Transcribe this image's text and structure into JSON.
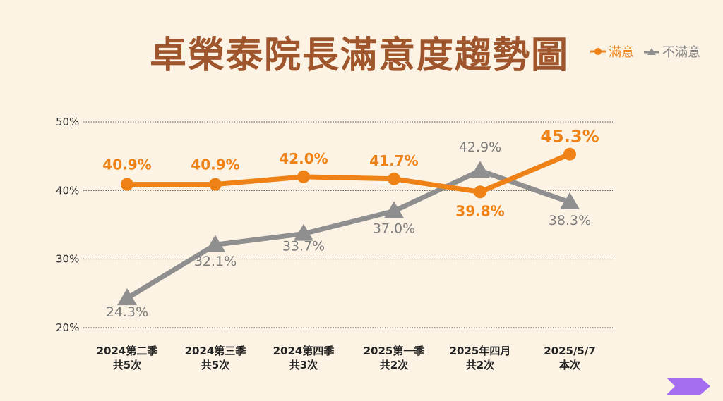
{
  "colors": {
    "satisfied": "#ee8216",
    "dissatisfied": "#8f8f8f",
    "title": "#a0562d",
    "background": "#fdf3e4",
    "grid": "#555555",
    "nav_arrow": "#a46cf0"
  },
  "icons": {
    "nav": "chevron-arrow-right-icon"
  },
  "chart_data": {
    "type": "line",
    "title": "卓榮泰院長滿意度趨勢圖",
    "xlabel": "",
    "ylabel": "",
    "ylim": [
      20,
      50
    ],
    "yticks": [
      20,
      30,
      40,
      50
    ],
    "ytick_labels": [
      "20%",
      "30%",
      "40%",
      "50%"
    ],
    "grid": true,
    "legend_position": "top-right",
    "categories": [
      [
        "2024第二季",
        "共5次"
      ],
      [
        "2024第三季",
        "共5次"
      ],
      [
        "2024第四季",
        "共3次"
      ],
      [
        "2025第一季",
        "共2次"
      ],
      [
        "2025年四月",
        "共2次"
      ],
      [
        "2025/5/7",
        "本次"
      ]
    ],
    "series": [
      {
        "name": "滿意",
        "marker": "circle",
        "values": [
          40.9,
          40.9,
          42.0,
          41.7,
          39.8,
          45.3
        ],
        "labels": [
          "40.9%",
          "40.9%",
          "42.0%",
          "41.7%",
          "39.8%",
          "45.3%"
        ]
      },
      {
        "name": "不滿意",
        "marker": "triangle",
        "values": [
          24.3,
          32.1,
          33.7,
          37.0,
          42.9,
          38.3
        ],
        "labels": [
          "24.3%",
          "32.1%",
          "33.7%",
          "37.0%",
          "42.9%",
          "38.3%"
        ]
      }
    ]
  }
}
